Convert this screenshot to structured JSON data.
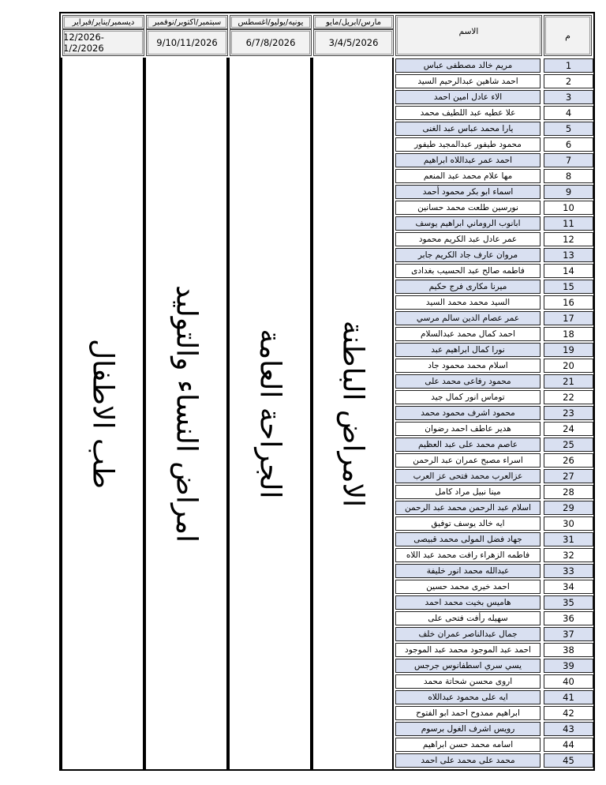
{
  "header": {
    "number_label": "م",
    "name_label": "الاسم",
    "periods": [
      {
        "months": "مارس/ابريل/مايو",
        "dates": "3/4/5/2026",
        "department": "الامراض الباطنة"
      },
      {
        "months": "يونيه/يوليو/اغسطس",
        "dates": "6/7/8/2026",
        "department": "الجراحة العامة"
      },
      {
        "months": "سبتمبر/اكتوبر/نوفمبر",
        "dates": "9/10/11/2026",
        "department": "امراض النساء والتوليد"
      },
      {
        "months": "ديسمبر/يناير/فبراير",
        "dates": "12/2026-1/2/2026",
        "department": "طب الاطفال"
      }
    ]
  },
  "colors": {
    "alt_row": "#d9e0f1",
    "header_bg": "#f2f2f2"
  },
  "rows": [
    {
      "n": "1",
      "name": "مريم خالد مصطفى عباس"
    },
    {
      "n": "2",
      "name": "احمد شاهين عبدالرحيم السيد"
    },
    {
      "n": "3",
      "name": "الاء عادل امين احمد"
    },
    {
      "n": "4",
      "name": "علا عطيه عبد اللطيف محمد"
    },
    {
      "n": "5",
      "name": "يارا محمد عباس عبد الغنى"
    },
    {
      "n": "6",
      "name": "محمود طيفور عبدالمجيد طيفور"
    },
    {
      "n": "7",
      "name": "احمد عمر عبداللاه ابراهيم"
    },
    {
      "n": "8",
      "name": "مها علام محمد عبد المنعم"
    },
    {
      "n": "9",
      "name": "اسماء ابو بكر محمود أحمد"
    },
    {
      "n": "10",
      "name": "نورسين طلعت محمد حسانين"
    },
    {
      "n": "11",
      "name": "ابانوب الروماني ابراهيم يوسف"
    },
    {
      "n": "12",
      "name": "عمر عادل عبد الكريم محمود"
    },
    {
      "n": "13",
      "name": "مروان عارف جاد الكريم جابر"
    },
    {
      "n": "14",
      "name": "فاطمه صالح عبد الحسيب بغدادى"
    },
    {
      "n": "15",
      "name": "ميرنا مكارى فرج حكيم"
    },
    {
      "n": "16",
      "name": "السيد محمد محمد السيد"
    },
    {
      "n": "17",
      "name": "عمر عصام الدين سالم مرسي"
    },
    {
      "n": "18",
      "name": "احمد كمال محمد عبدالسلام"
    },
    {
      "n": "19",
      "name": "نورا كمال ابراهيم عبد"
    },
    {
      "n": "20",
      "name": "اسلام محمد  محمود جاد"
    },
    {
      "n": "21",
      "name": "محمود رفاعى محمد على"
    },
    {
      "n": "22",
      "name": "توماس انور كمال جيد"
    },
    {
      "n": "23",
      "name": "محمود اشرف محمود محمد"
    },
    {
      "n": "24",
      "name": "هدير عاطف احمد رضوان"
    },
    {
      "n": "25",
      "name": "عاصم محمد على عبد العظيم"
    },
    {
      "n": "26",
      "name": "اسراء مصبح عمران عبد الرحمن"
    },
    {
      "n": "27",
      "name": "عزالعرب محمد فتحى عز العرب"
    },
    {
      "n": "28",
      "name": "مينا نبيل مراد  كامل"
    },
    {
      "n": "29",
      "name": "اسلام عبد الرحمن محمد عبد الرحمن"
    },
    {
      "n": "30",
      "name": "ايه خالد يوسف توفيق"
    },
    {
      "n": "31",
      "name": "جهاد فضل المولى محمد قبيصى"
    },
    {
      "n": "32",
      "name": "فاطمه الزهراء رافت محمد عبد اللاه"
    },
    {
      "n": "33",
      "name": "عبدالله محمد انور خليفة"
    },
    {
      "n": "34",
      "name": "احمد خيرى محمد حسين"
    },
    {
      "n": "35",
      "name": "هاميس بخيت محمد احمد"
    },
    {
      "n": "36",
      "name": "سهيله رأفت فتحى على"
    },
    {
      "n": "37",
      "name": "جمال عبدالناصر عمران خلف"
    },
    {
      "n": "38",
      "name": "احمد عبد الموجود محمد عبد الموجود"
    },
    {
      "n": "39",
      "name": "يسي سري اسطفانوس جرجس"
    },
    {
      "n": "40",
      "name": "اروى محسن شحاتة محمد"
    },
    {
      "n": "41",
      "name": "ايه على محمود عبداللاه"
    },
    {
      "n": "42",
      "name": "ابراهيم ممدوح احمد ابو الفتوح"
    },
    {
      "n": "43",
      "name": "رويس اشرف الغول برسوم"
    },
    {
      "n": "44",
      "name": "اسامه محمد حسن ابراهيم"
    },
    {
      "n": "45",
      "name": "محمد على محمد على احمد"
    }
  ]
}
